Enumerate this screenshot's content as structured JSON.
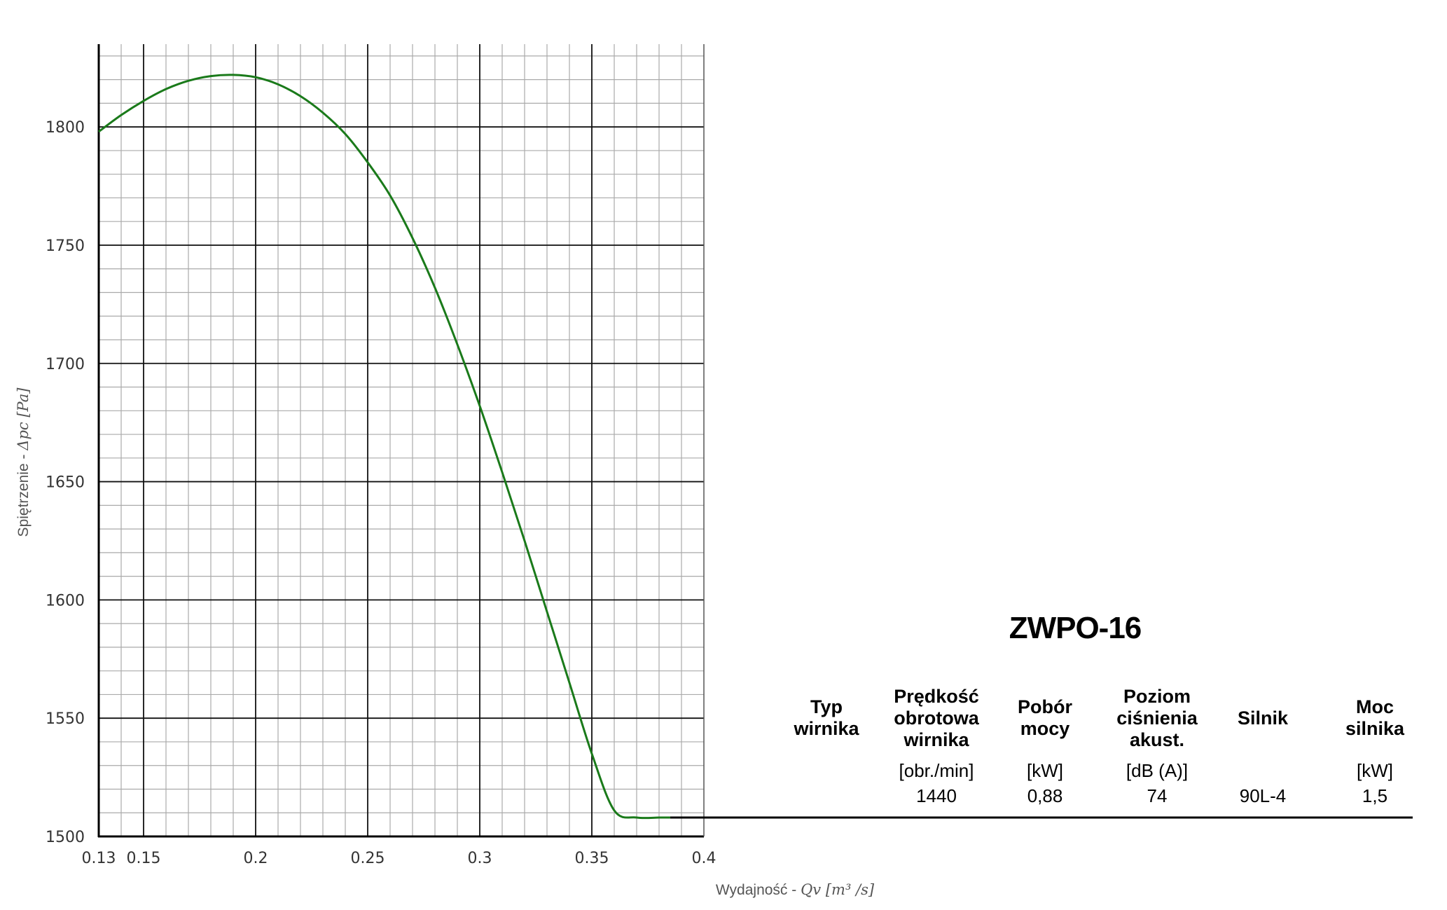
{
  "chart_data": {
    "type": "line",
    "xlabel_text": "Wydajność - ",
    "xlabel_math": "Qv [m³ /s]",
    "ylabel_text": "Spiętrzenie - ",
    "ylabel_math": "Δpc [Pa]",
    "xlim": [
      0.13,
      0.4
    ],
    "ylim": [
      1500,
      1835
    ],
    "x_ticks": [
      0.13,
      0.15,
      0.2,
      0.25,
      0.3,
      0.35,
      0.4
    ],
    "x_tick_labels": [
      "0.13",
      "0.15",
      "0.2",
      "0.25",
      "0.3",
      "0.35",
      "0.4"
    ],
    "y_ticks": [
      1500,
      1550,
      1600,
      1650,
      1700,
      1750,
      1800
    ],
    "y_tick_labels": [
      "1500",
      "1550",
      "1600",
      "1650",
      "1700",
      "1750",
      "1800"
    ],
    "x_major_grid": [
      0.15,
      0.2,
      0.25,
      0.3,
      0.35
    ],
    "y_major_grid": [
      1550,
      1600,
      1650,
      1700,
      1750,
      1800
    ],
    "grid": true,
    "series": [
      {
        "color": "#1a7a1a",
        "x": [
          0.13,
          0.14,
          0.15,
          0.16,
          0.17,
          0.18,
          0.19,
          0.2,
          0.21,
          0.22,
          0.23,
          0.24,
          0.25,
          0.26,
          0.27,
          0.28,
          0.29,
          0.3,
          0.31,
          0.32,
          0.33,
          0.34,
          0.35,
          0.36,
          0.37,
          0.38,
          0.385
        ],
        "y": [
          1798,
          1805,
          1811,
          1816,
          1819.5,
          1821.5,
          1822,
          1821,
          1818,
          1813,
          1806,
          1797,
          1785,
          1771,
          1753,
          1732,
          1708,
          1682,
          1654,
          1625,
          1595,
          1565,
          1535,
          1511,
          1508,
          1508,
          1508
        ]
      }
    ],
    "reference_line": {
      "y": 1508,
      "x_start": 0.385,
      "color": "#000000"
    }
  },
  "model": {
    "title": "ZWPO-16"
  },
  "table": {
    "columns": [
      {
        "header": [
          "Typ",
          "wirnika"
        ],
        "unit": "",
        "value": ""
      },
      {
        "header": [
          "Prędkość",
          "obrotowa",
          "wirnika"
        ],
        "unit": "[obr./min]",
        "value": "1440"
      },
      {
        "header": [
          "Pobór",
          "mocy"
        ],
        "unit": "[kW]",
        "value": "0,88"
      },
      {
        "header": [
          "Poziom",
          "ciśnienia",
          "akust."
        ],
        "unit": "[dB (A)]",
        "value": "74"
      },
      {
        "header": [
          "Silnik"
        ],
        "unit": "",
        "value": "90L-4"
      },
      {
        "header": [
          "Moc",
          "silnika"
        ],
        "unit": "[kW]",
        "value": "1,5"
      }
    ]
  }
}
